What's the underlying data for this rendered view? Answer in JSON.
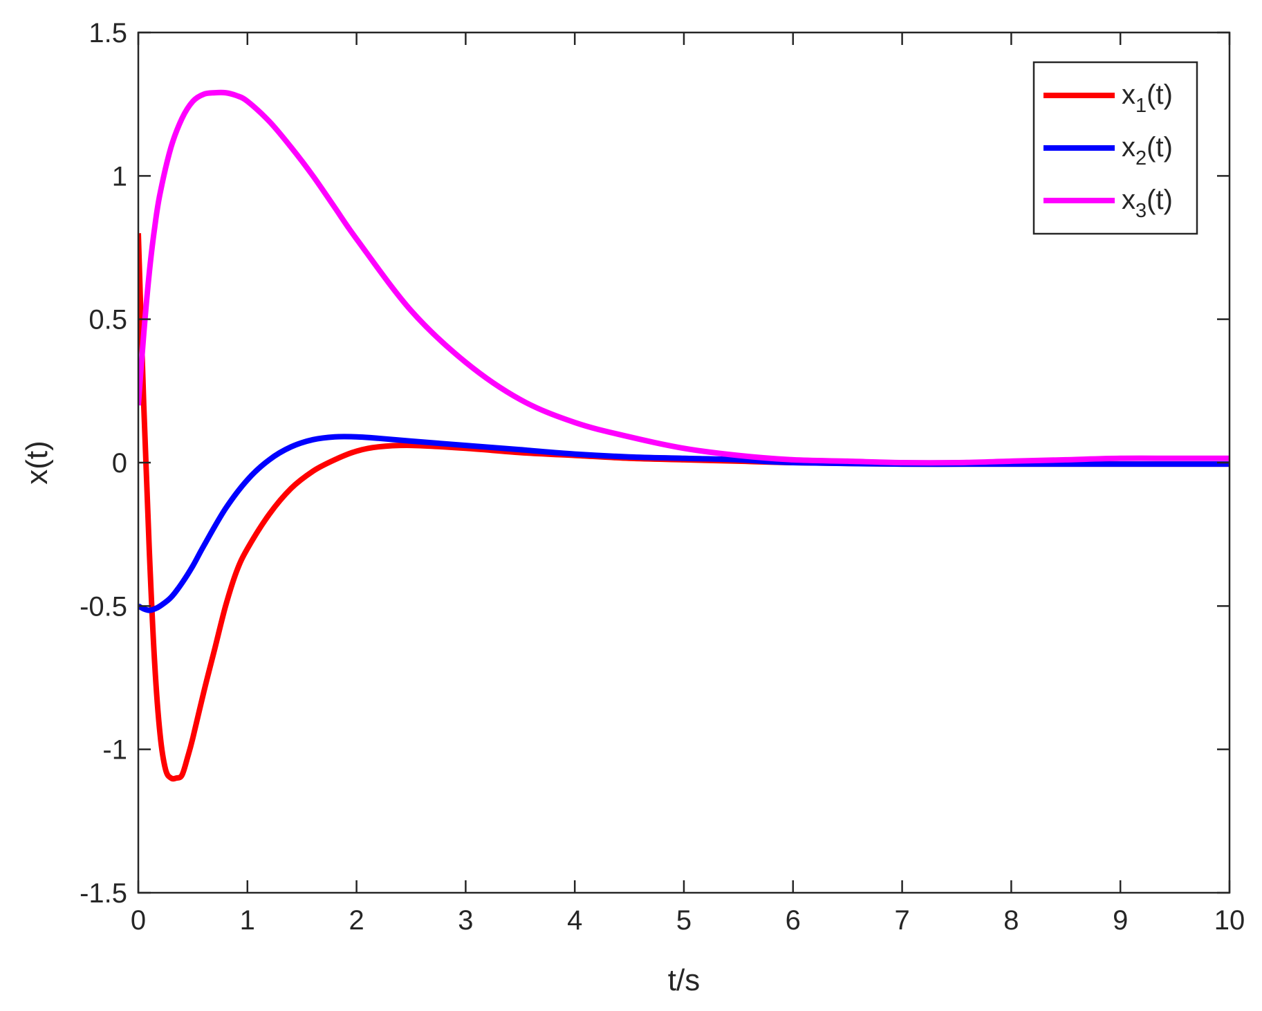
{
  "chart_data": {
    "type": "line",
    "xlabel": "t/s",
    "ylabel": "x(t)",
    "xlim": [
      0,
      10
    ],
    "ylim": [
      -1.5,
      1.5
    ],
    "xticks": [
      "0",
      "1",
      "2",
      "3",
      "4",
      "5",
      "6",
      "7",
      "8",
      "9",
      "10"
    ],
    "yticks": [
      "-1.5",
      "-1",
      "-0.5",
      "0",
      "0.5",
      "1",
      "1.5"
    ],
    "grid": false,
    "legend_position": "top-right",
    "series": [
      {
        "name": "x1(t)",
        "legend_main": "x",
        "legend_sub": "1",
        "legend_tail": "(t)",
        "color": "#ff0000",
        "x": [
          0,
          0.05,
          0.1,
          0.15,
          0.2,
          0.25,
          0.3,
          0.35,
          0.4,
          0.45,
          0.5,
          0.6,
          0.7,
          0.8,
          0.9,
          1.0,
          1.2,
          1.4,
          1.6,
          1.8,
          2.0,
          2.2,
          2.5,
          3.0,
          3.5,
          4.0,
          4.5,
          5.0,
          5.5,
          6.0,
          7.0,
          8.0,
          9.0,
          10.0
        ],
        "y": [
          0.8,
          0.2,
          -0.3,
          -0.7,
          -0.95,
          -1.07,
          -1.1,
          -1.1,
          -1.09,
          -1.03,
          -0.96,
          -0.8,
          -0.65,
          -0.5,
          -0.38,
          -0.3,
          -0.18,
          -0.09,
          -0.03,
          0.01,
          0.04,
          0.055,
          0.06,
          0.05,
          0.035,
          0.025,
          0.015,
          0.01,
          0.005,
          0.0,
          -0.005,
          -0.005,
          -0.005,
          -0.005
        ]
      },
      {
        "name": "x2(t)",
        "legend_main": "x",
        "legend_sub": "2",
        "legend_tail": "(t)",
        "color": "#0000ff",
        "x": [
          0,
          0.05,
          0.1,
          0.15,
          0.2,
          0.3,
          0.4,
          0.5,
          0.6,
          0.8,
          1.0,
          1.2,
          1.4,
          1.6,
          1.8,
          2.0,
          2.2,
          2.5,
          3.0,
          3.5,
          4.0,
          4.5,
          5.0,
          5.5,
          6.0,
          7.0,
          8.0,
          9.0,
          10.0
        ],
        "y": [
          -0.5,
          -0.51,
          -0.515,
          -0.51,
          -0.5,
          -0.47,
          -0.42,
          -0.36,
          -0.29,
          -0.16,
          -0.06,
          0.01,
          0.055,
          0.08,
          0.09,
          0.09,
          0.085,
          0.075,
          0.06,
          0.045,
          0.03,
          0.02,
          0.015,
          0.01,
          0.0,
          -0.005,
          -0.005,
          -0.005,
          -0.005
        ]
      },
      {
        "name": "x3(t)",
        "legend_main": "x",
        "legend_sub": "3",
        "legend_tail": "(t)",
        "color": "#ff00ff",
        "x": [
          0,
          0.05,
          0.1,
          0.15,
          0.2,
          0.3,
          0.4,
          0.5,
          0.6,
          0.7,
          0.8,
          0.9,
          1.0,
          1.2,
          1.4,
          1.6,
          1.8,
          2.0,
          2.5,
          3.0,
          3.5,
          4.0,
          4.5,
          5.0,
          5.5,
          6.0,
          6.5,
          7.0,
          7.5,
          8.0,
          8.5,
          9.0,
          9.5,
          10.0
        ],
        "y": [
          0.2,
          0.45,
          0.66,
          0.82,
          0.94,
          1.1,
          1.2,
          1.26,
          1.285,
          1.29,
          1.29,
          1.28,
          1.26,
          1.19,
          1.1,
          1.0,
          0.89,
          0.78,
          0.53,
          0.35,
          0.22,
          0.14,
          0.09,
          0.05,
          0.025,
          0.01,
          0.005,
          0.0,
          0.0,
          0.005,
          0.01,
          0.015,
          0.015,
          0.015
        ]
      }
    ]
  }
}
